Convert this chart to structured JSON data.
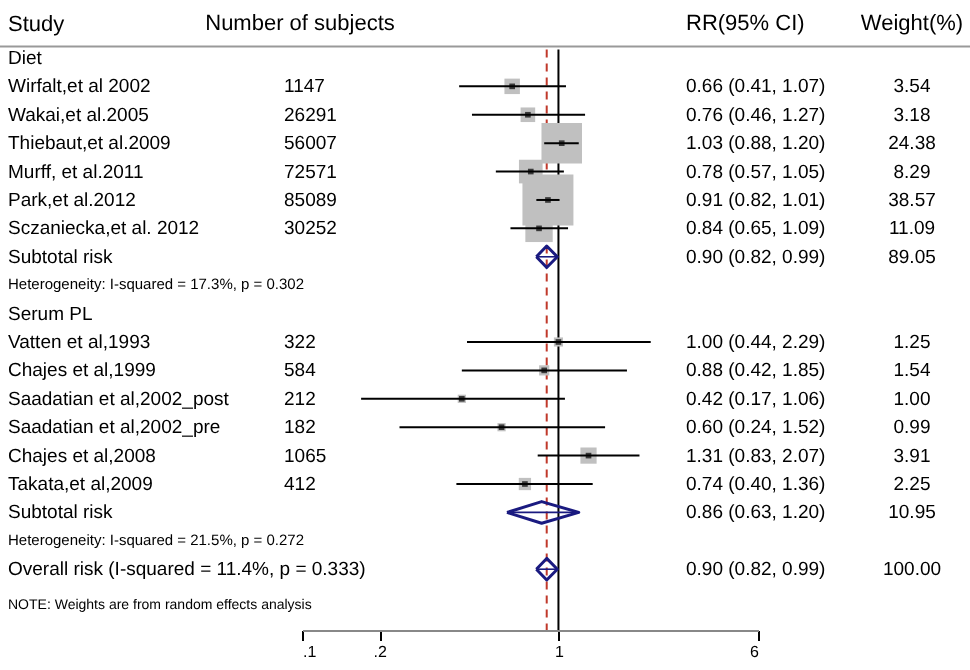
{
  "chart_data": {
    "type": "scatter",
    "orientation": "horizontal",
    "log": "x",
    "grid": false,
    "legend": false,
    "tick_labels": "x",
    "ylabel": "Study",
    "categories": [
      "Diet",
      "Wirfalt,et al 2002",
      "Wakai,et al.2005",
      "Thiebaut,et al.2009",
      "Murff, et al.2011",
      "Park,et al.2012",
      "Sczaniecka,et al. 2012",
      "Subtotal risk",
      "Heterogeneity: I-squared = 17.3%, p = 0.302",
      "Serum PL",
      "Vatten et al,1993",
      "Chajes et al,1999",
      "Saadatian et al,2002_post",
      "Saadatian et al,2002_pre",
      "Chajes et al,2008",
      "Takata,et al,2009",
      "Subtotal risk",
      "Heterogeneity: I-squared = 21.5%, p = 0.272",
      "Overall risk (I-squared = 11.4%, p = 0.333)"
    ],
    "xlim": [
      0.1,
      6
    ],
    "xticks": [
      {
        "value": 0.1,
        "label": ".1"
      },
      {
        "value": 0.2,
        "label": ".2"
      },
      1,
      6
    ],
    "ref_lines": [
      {
        "axis": "x",
        "value": 1,
        "color": "#000000",
        "line_style": "solid"
      },
      {
        "axis": "x",
        "value": 0.9,
        "color": "#c0392b",
        "line_style": "dashed"
      }
    ],
    "series": [
      {
        "marker": "square",
        "color": "#c0c0c0",
        "values": [
          null,
          0.66,
          0.76,
          1.03,
          0.78,
          0.91,
          0.84,
          null,
          null,
          null,
          1.0,
          0.88,
          0.42,
          0.6,
          1.31,
          0.74,
          null,
          null,
          null
        ],
        "errors": [
          null,
          [
            0.41,
            1.07
          ],
          [
            0.46,
            1.27
          ],
          [
            0.88,
            1.2
          ],
          [
            0.57,
            1.05
          ],
          [
            0.82,
            1.01
          ],
          [
            0.65,
            1.09
          ],
          null,
          null,
          null,
          [
            0.44,
            2.29
          ],
          [
            0.42,
            1.85
          ],
          [
            0.17,
            1.06
          ],
          [
            0.24,
            1.52
          ],
          [
            0.83,
            2.07
          ],
          [
            0.4,
            1.36
          ],
          null,
          null,
          null
        ],
        "sizes": [
          null,
          0.092,
          0.082,
          0.632,
          0.215,
          1,
          0.288,
          null,
          null,
          null,
          0.032,
          0.04,
          0.026,
          0.026,
          0.101,
          0.058,
          null,
          null,
          null
        ]
      },
      {
        "marker": "diamond",
        "color": "#1a1a80",
        "values": [
          null,
          null,
          null,
          null,
          null,
          null,
          null,
          0.9,
          null,
          null,
          null,
          null,
          null,
          null,
          null,
          null,
          0.86,
          null,
          0.9
        ],
        "errors": [
          null,
          null,
          null,
          null,
          null,
          null,
          null,
          [
            0.82,
            0.99
          ],
          null,
          null,
          null,
          null,
          null,
          null,
          null,
          null,
          [
            0.63,
            1.2
          ],
          null,
          [
            0.82,
            0.99
          ]
        ]
      }
    ],
    "cell_labels": [
      [
        null,
        null,
        null
      ],
      [
        "1147",
        "0.66 (0.41, 1.07)",
        "3.54"
      ],
      [
        "26291",
        "0.76 (0.46, 1.27)",
        "3.18"
      ],
      [
        "56007",
        "1.03 (0.88, 1.20)",
        "24.38"
      ],
      [
        "72571",
        "0.78 (0.57, 1.05)",
        "8.29"
      ],
      [
        "85089",
        "0.91 (0.82, 1.01)",
        "38.57"
      ],
      [
        "30252",
        "0.84 (0.65, 1.09)",
        "11.09"
      ],
      [
        null,
        "0.90 (0.82, 0.99)",
        "89.05"
      ],
      [
        null,
        null,
        null
      ],
      [
        null,
        null,
        null
      ],
      [
        "322",
        "1.00 (0.44, 2.29)",
        "1.25"
      ],
      [
        "584",
        "0.88 (0.42, 1.85)",
        "1.54"
      ],
      [
        "212",
        "0.42 (0.17, 1.06)",
        "1.00"
      ],
      [
        "182",
        "0.60 (0.24, 1.52)",
        "0.99"
      ],
      [
        "1065",
        "1.31 (0.83, 2.07)",
        "3.91"
      ],
      [
        "412",
        "0.74 (0.40, 1.36)",
        "2.25"
      ],
      [
        null,
        "0.86 (0.63, 1.20)",
        "10.95"
      ],
      [
        null,
        null,
        null
      ],
      [
        null,
        "0.90 (0.82, 0.99)",
        "100.00"
      ]
    ],
    "annotations": [
      "Number of subjects",
      "RR(95% CI)",
      "Weight(%)",
      "NOTE: Weights are from random effects analysis"
    ]
  }
}
